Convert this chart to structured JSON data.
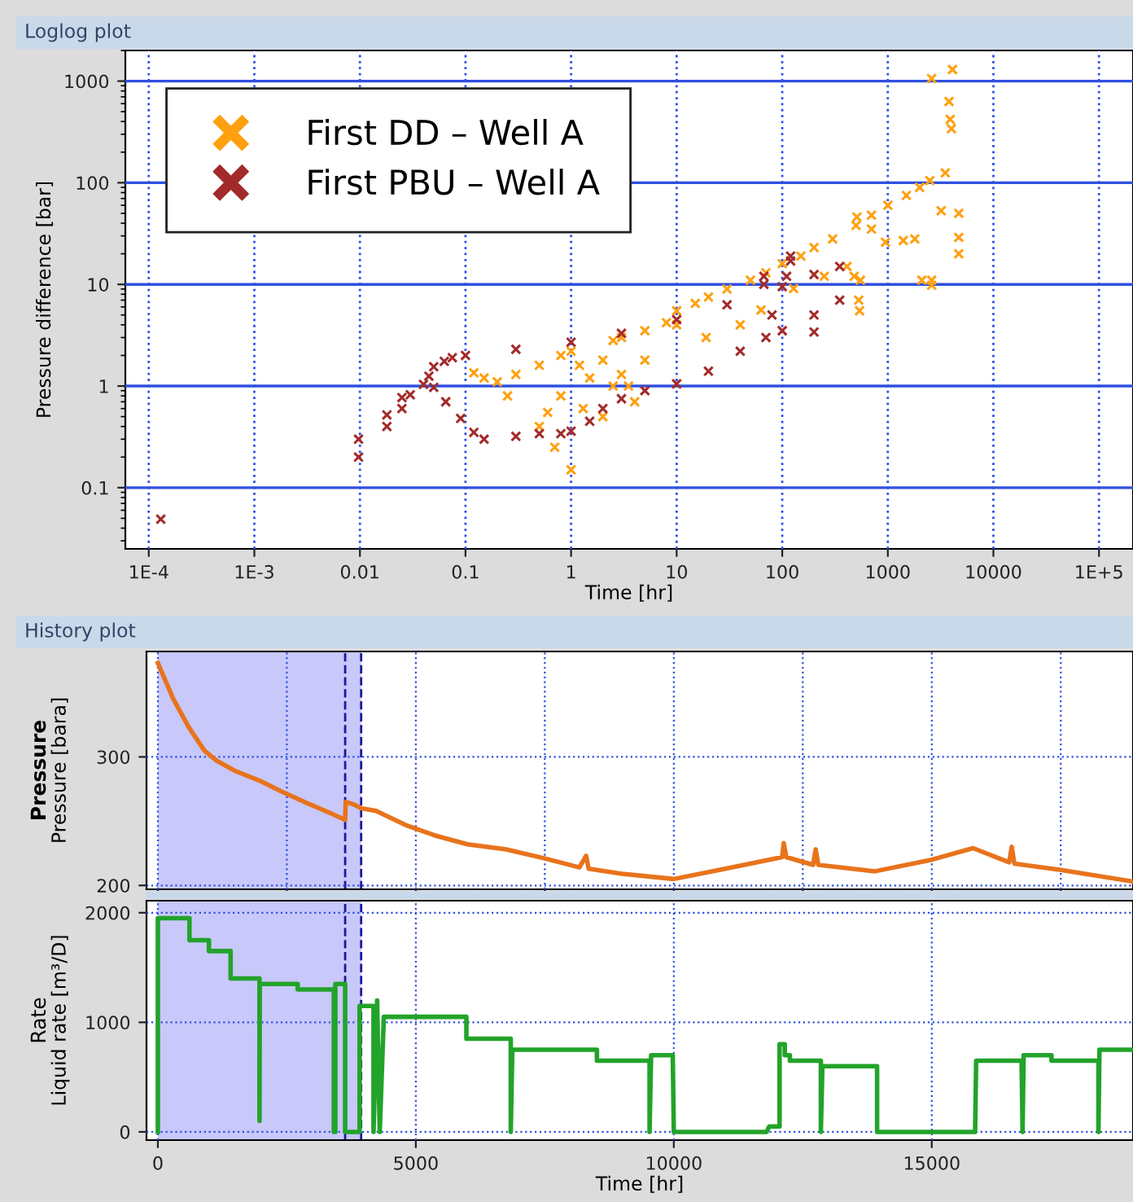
{
  "chart_data": [
    {
      "type": "scatter",
      "title": "Loglog plot",
      "xlabel": "Time [hr]",
      "ylabel": "Pressure difference [bar]",
      "log": "xy",
      "marker": "cross",
      "grid": true,
      "legend": "top left",
      "xlim": [
        6e-05,
        210000
      ],
      "ylim": [
        0.025,
        2000
      ],
      "xticks": [
        {
          "value": 0.0001,
          "label": "1E-4"
        },
        {
          "value": 0.001,
          "label": "1E-3"
        },
        0.01,
        0.1,
        1,
        10,
        100,
        1000,
        10000,
        {
          "value": 100000,
          "label": "1E+5"
        }
      ],
      "yticks": [
        0.1,
        1,
        10,
        100,
        1000
      ],
      "series": [
        {
          "name": "First DD – Well A",
          "color": "#ffa010",
          "x": [
            2.5,
            3,
            5,
            8,
            10,
            15,
            20,
            30,
            50,
            70,
            100,
            150,
            200,
            300,
            500,
            700,
            1000,
            1500,
            2000,
            2500,
            3500,
            10,
            19,
            40,
            63,
            128,
            250,
            410,
            0.12,
            0.15,
            0.2,
            0.25,
            0.3,
            0.5,
            0.5,
            0.6,
            0.7,
            0.8,
            0.8,
            1.0,
            1.0,
            1.2,
            1.3,
            1.5,
            2,
            2,
            2.5,
            3,
            3.5,
            4,
            5,
            480,
            550,
            530,
            540,
            510,
            700,
            950,
            1400,
            1800,
            3200,
            2100,
            2600,
            2600,
            2600,
            4100,
            3800,
            3900,
            4000,
            4700,
            4700,
            4700
          ],
          "values": [
            2.8,
            3.0,
            3.5,
            4.2,
            5.5,
            6.5,
            7.5,
            9,
            11,
            13,
            16,
            19,
            23,
            28,
            38,
            48,
            60,
            75,
            90,
            105,
            125,
            4.0,
            3.0,
            4.0,
            5.6,
            9.1,
            12,
            15,
            1.35,
            1.2,
            1.1,
            0.8,
            1.3,
            1.6,
            0.4,
            0.55,
            0.25,
            2.0,
            0.8,
            0.15,
            2.2,
            1.6,
            0.6,
            1.2,
            0.5,
            1.8,
            1.0,
            1.3,
            1.0,
            0.7,
            1.8,
            12,
            11,
            7,
            5.5,
            46,
            35,
            26,
            27,
            28,
            53,
            11,
            11,
            9.8,
            1060,
            1300,
            630,
            420,
            340,
            50,
            29,
            20
          ]
        },
        {
          "name": "First PBU – Well A",
          "color": "#a32a2a",
          "x": [
            0.00013,
            0.0097,
            0.0097,
            0.018,
            0.018,
            0.025,
            0.025,
            0.03,
            0.04,
            0.045,
            0.05,
            0.063,
            0.075,
            0.1,
            0.05,
            0.065,
            0.09,
            0.12,
            0.3,
            1,
            3,
            10,
            30,
            100,
            200,
            350,
            0.15,
            0.3,
            0.5,
            0.8,
            1,
            1.5,
            2,
            3,
            5,
            10,
            20,
            40,
            70,
            100,
            200,
            350,
            67,
            67,
            120,
            120,
            80,
            200,
            110
          ],
          "values": [
            0.049,
            0.3,
            0.2,
            0.52,
            0.4,
            0.77,
            0.6,
            0.82,
            1.04,
            1.25,
            1.55,
            1.75,
            1.9,
            2.0,
            0.97,
            0.7,
            0.48,
            0.35,
            2.3,
            2.7,
            3.3,
            4.5,
            6.3,
            9.5,
            12.5,
            15,
            0.3,
            0.32,
            0.34,
            0.34,
            0.36,
            0.45,
            0.6,
            0.75,
            0.9,
            1.05,
            1.4,
            2.2,
            3,
            3.5,
            5,
            7,
            12,
            10,
            19,
            17,
            5,
            3.4,
            12
          ]
        }
      ]
    },
    {
      "type": "line",
      "title": "History plot",
      "subtitle": "Pressure",
      "ylabel": "Pressure [bara]",
      "grid": true,
      "tick_labels": "y",
      "xlim": [
        -220,
        18900
      ],
      "ylim": [
        197,
        382
      ],
      "yticks": [
        200,
        300
      ],
      "bands": [
        {
          "axis": "x",
          "from": 0,
          "to": 3940,
          "color": "#c8c8fa"
        }
      ],
      "ref_lines": [
        {
          "axis": "x",
          "value": 3630,
          "color": "#1a1a9a",
          "line_style": "dashed"
        },
        {
          "axis": "x",
          "value": 3940,
          "color": "#1a1a9a",
          "line_style": "dashed"
        }
      ],
      "series": [
        {
          "color": "#e8731c",
          "x": [
            0,
            300,
            600,
            900,
            1140,
            1500,
            2000,
            2400,
            2840,
            3300,
            3630,
            3640,
            3800,
            3940,
            4230,
            4800,
            5360,
            6000,
            6750,
            7500,
            8170,
            8300,
            8350,
            9000,
            10000,
            11000,
            12100,
            12130,
            12180,
            12700,
            12750,
            12800,
            13900,
            15000,
            15800,
            16500,
            16550,
            16600,
            17500,
            18900
          ],
          "values": [
            373,
            345,
            323,
            305,
            297,
            289,
            281,
            273,
            265,
            257,
            251,
            265,
            263,
            260,
            258,
            247,
            239,
            232,
            228,
            221,
            214,
            223,
            213,
            209,
            205,
            213,
            222,
            233,
            222,
            216,
            228,
            216,
            211,
            220,
            229,
            218,
            230,
            217,
            212,
            203
          ]
        }
      ]
    },
    {
      "type": "line",
      "subtitle": "Rate",
      "ylabel": "Liquid rate [m³/D]",
      "xlabel": "Time [hr]",
      "grid": true,
      "xlim": [
        -220,
        18900
      ],
      "ylim": [
        -75,
        2110
      ],
      "xticks": [
        0,
        5000,
        10000,
        15000
      ],
      "yticks": [
        0,
        1000,
        2000
      ],
      "bands": [
        {
          "axis": "x",
          "from": 0,
          "to": 3940,
          "color": "#c8c8fa"
        }
      ],
      "ref_lines": [
        {
          "axis": "x",
          "value": 3630,
          "color": "#1a1a9a",
          "line_style": "dashed"
        },
        {
          "axis": "x",
          "value": 3940,
          "color": "#1a1a9a",
          "line_style": "dashed"
        }
      ],
      "series": [
        {
          "color": "#22a32a",
          "x": [
            0,
            0,
            613,
            613,
            990,
            990,
            1410,
            1410,
            1970,
            1970,
            1975,
            2710,
            2710,
            3410,
            3410,
            3440,
            3440,
            3630,
            3630,
            3910,
            3910,
            4180,
            4180,
            4250,
            4300,
            4380,
            5980,
            5980,
            6840,
            6840,
            6870,
            8510,
            8510,
            9530,
            9530,
            9560,
            9980,
            10000,
            11800,
            11850,
            12050,
            12050,
            12150,
            12150,
            12250,
            12250,
            12850,
            12850,
            12880,
            13940,
            13940,
            15840,
            15860,
            16740,
            16760,
            16780,
            17320,
            17320,
            18230,
            18230,
            18250,
            18900
          ],
          "values": [
            0,
            1950,
            1950,
            1750,
            1750,
            1650,
            1650,
            1400,
            1400,
            100,
            1350,
            1350,
            1300,
            1300,
            0,
            0,
            1350,
            1350,
            0,
            0,
            1150,
            1150,
            0,
            1200,
            0,
            1050,
            1050,
            850,
            850,
            0,
            750,
            750,
            650,
            650,
            0,
            700,
            700,
            0,
            0,
            50,
            50,
            800,
            800,
            700,
            700,
            650,
            650,
            0,
            600,
            600,
            0,
            0,
            650,
            650,
            0,
            700,
            700,
            650,
            650,
            0,
            750,
            750
          ]
        }
      ]
    }
  ]
}
